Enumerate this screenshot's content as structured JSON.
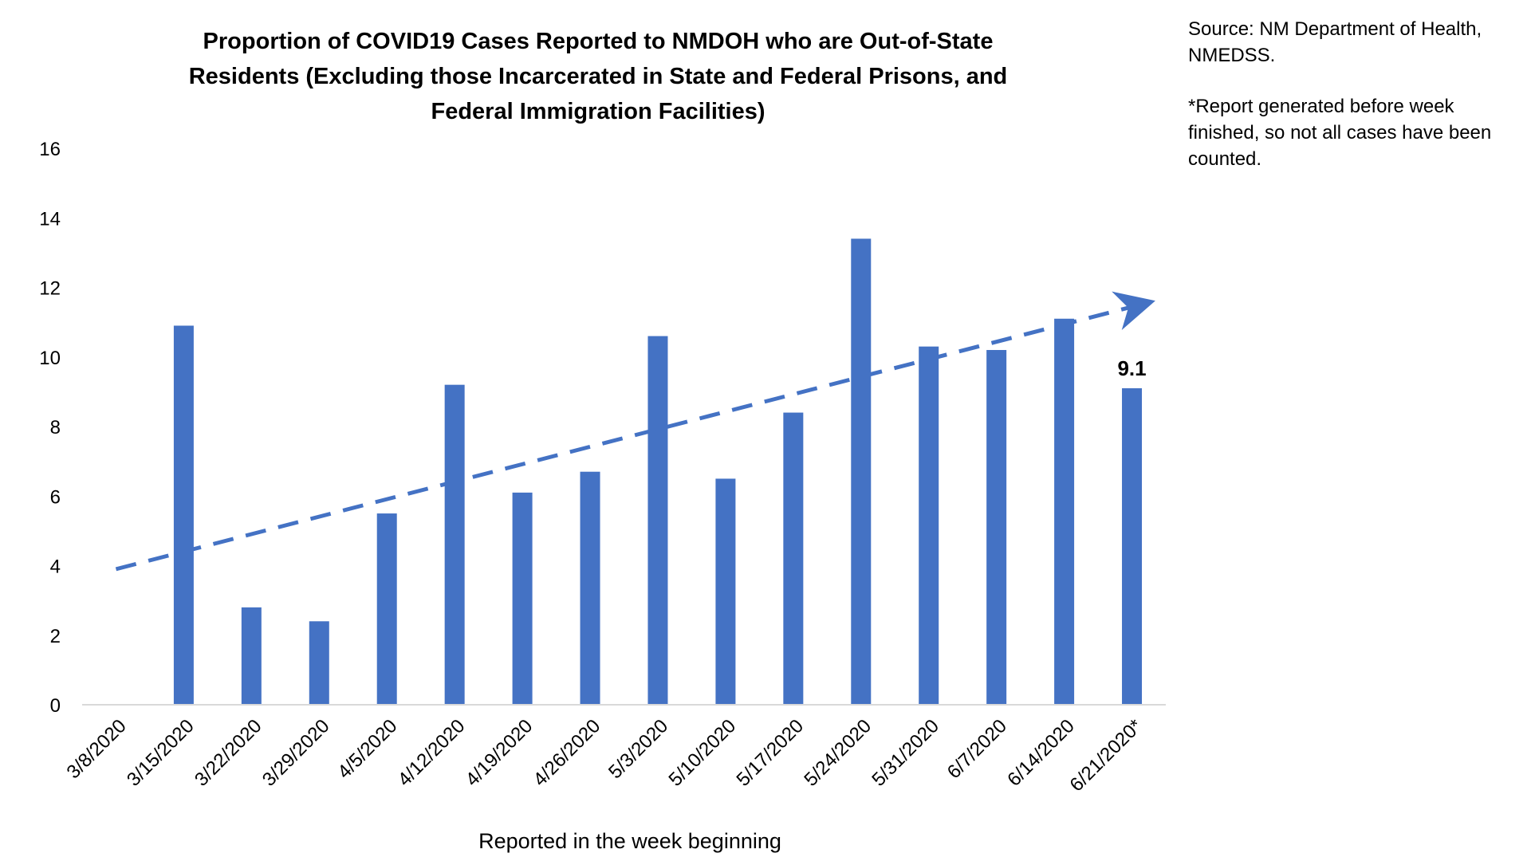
{
  "chart_data": {
    "type": "bar",
    "title": "Proportion of COVID19 Cases Reported to NMDOH who are Out-of-State Residents (Excluding those Incarcerated in State and Federal Prisons, and Federal Immigration Facilities)",
    "xlabel": "Reported in the week beginning",
    "ylabel": "",
    "ylim": [
      0,
      16
    ],
    "yticks": [
      0,
      2,
      4,
      6,
      8,
      10,
      12,
      14,
      16
    ],
    "categories": [
      "3/8/2020",
      "3/15/2020",
      "3/22/2020",
      "3/29/2020",
      "4/5/2020",
      "4/12/2020",
      "4/19/2020",
      "4/26/2020",
      "5/3/2020",
      "5/10/2020",
      "5/17/2020",
      "5/24/2020",
      "5/31/2020",
      "6/7/2020",
      "6/14/2020",
      "6/21/2020*"
    ],
    "values": [
      0,
      10.9,
      2.8,
      2.4,
      5.5,
      9.2,
      6.1,
      6.7,
      10.6,
      6.5,
      8.4,
      13.4,
      10.3,
      10.2,
      11.1,
      9.1
    ],
    "data_labels": [
      {
        "category": "6/21/2020*",
        "text": "9.1"
      }
    ],
    "trendline": {
      "type": "linear",
      "style": "dashed-arrow",
      "start_value": 3.9,
      "end_value": 11.5
    },
    "bar_color": "#4472C4",
    "trend_color": "#4472C4",
    "axis_color": "#D9D9D9",
    "grid": false,
    "legend": "none"
  },
  "notes": {
    "source": "Source: NM Department of Health, NMEDSS.",
    "footnote": "*Report generated before week finished, so not all cases have been counted."
  }
}
